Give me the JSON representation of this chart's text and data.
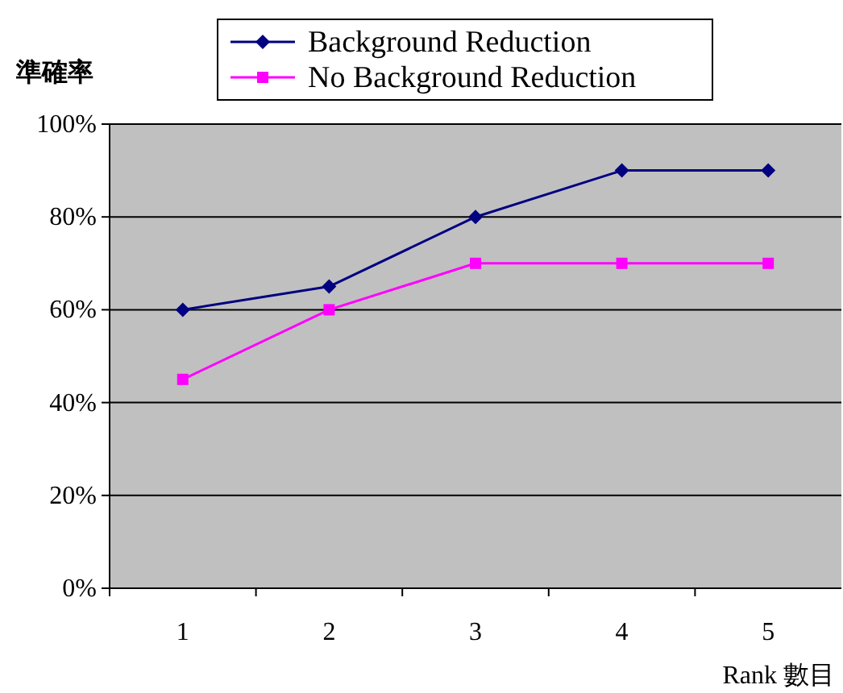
{
  "chart_data": {
    "type": "line",
    "ylabel": "準確率",
    "xlabel": "Rank 數目",
    "categories": [
      "1",
      "2",
      "3",
      "4",
      "5"
    ],
    "series": [
      {
        "name": "Background Reduction",
        "color": "#000080",
        "marker": "diamond",
        "values": [
          60,
          65,
          80,
          90,
          90
        ]
      },
      {
        "name": "No Background Reduction",
        "color": "#ff00ff",
        "marker": "square",
        "values": [
          45,
          60,
          70,
          70,
          70
        ]
      }
    ],
    "ylim": [
      0,
      100
    ],
    "yticks": [
      {
        "value": 0,
        "label": "0%"
      },
      {
        "value": 20,
        "label": "20%"
      },
      {
        "value": 40,
        "label": "40%"
      },
      {
        "value": 60,
        "label": "60%"
      },
      {
        "value": 80,
        "label": "80%"
      },
      {
        "value": 100,
        "label": "100%"
      }
    ],
    "grid": "y",
    "legend": "top"
  }
}
